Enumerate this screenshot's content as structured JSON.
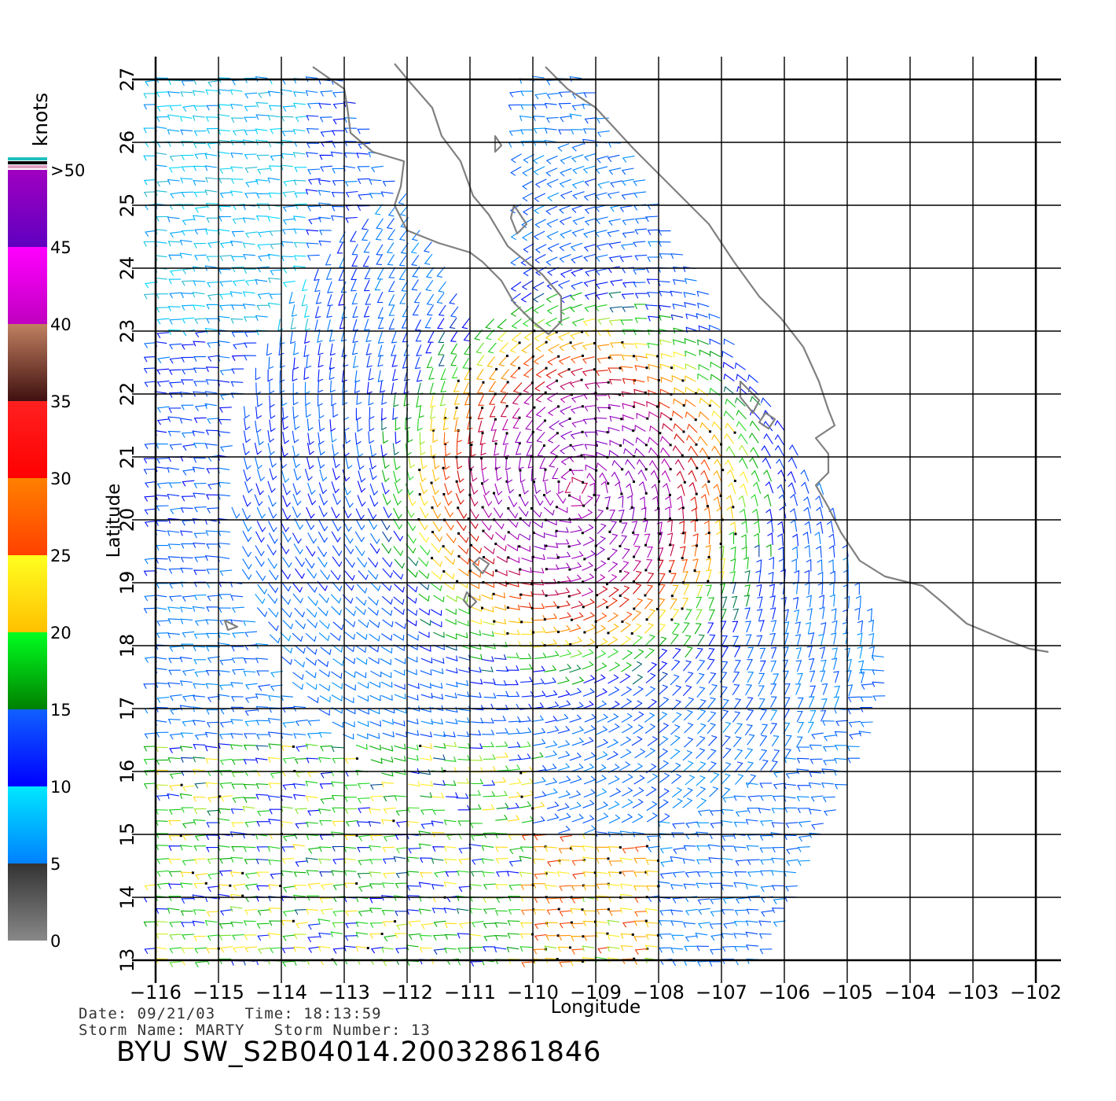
{
  "map": {
    "xlabel": "Longitude",
    "ylabel": "Latitude",
    "lon_ticks": [
      -116,
      -115,
      -114,
      -113,
      -112,
      -111,
      -110,
      -109,
      -108,
      -107,
      -106,
      -105,
      -104,
      -103,
      -102
    ],
    "lat_ticks": [
      13,
      14,
      15,
      16,
      17,
      18,
      19,
      20,
      21,
      22,
      23,
      24,
      25,
      26,
      27
    ],
    "lon_range": [
      -116,
      -102
    ],
    "lat_range": [
      13,
      27
    ],
    "grid": true,
    "coastline_color": "#808080"
  },
  "legend": {
    "unit": "knots",
    "labels": [
      "0",
      "5",
      "10",
      "15",
      "20",
      "25",
      "30",
      "35",
      "40",
      "45",
      ">50"
    ],
    "bands": [
      {
        "from": 0,
        "to": 5,
        "top": "#333333",
        "bottom": "#888888"
      },
      {
        "from": 5,
        "to": 10,
        "top": "#00e8ff",
        "bottom": "#0080ff"
      },
      {
        "from": 10,
        "to": 15,
        "top": "#1060ff",
        "bottom": "#0000ff"
      },
      {
        "from": 15,
        "to": 20,
        "top": "#00ff20",
        "bottom": "#008000"
      },
      {
        "from": 20,
        "to": 25,
        "top": "#ffff20",
        "bottom": "#ffc000"
      },
      {
        "from": 25,
        "to": 30,
        "top": "#ff8000",
        "bottom": "#ff4000"
      },
      {
        "from": 30,
        "to": 35,
        "top": "#ff2020",
        "bottom": "#ff0000"
      },
      {
        "from": 35,
        "to": 40,
        "top": "#c08060",
        "bottom": "#401010"
      },
      {
        "from": 40,
        "to": 45,
        "top": "#ff00ff",
        "bottom": "#c000c0"
      },
      {
        "from": 45,
        "to": 50,
        "top": "#a000c0",
        "bottom": "#6000c0"
      }
    ],
    "cap_colors": [
      "#20c0c0",
      "#000000",
      "#e0a0c0"
    ]
  },
  "info": {
    "line1": "Date: 09/21/03   Time: 18:13:59",
    "line2": "Storm Name: MARTY   Storm Number: 13"
  },
  "title": "BYU SW_S2B04014.20032861846",
  "storm_center": {
    "lon": -109.3,
    "lat": 20.5
  }
}
